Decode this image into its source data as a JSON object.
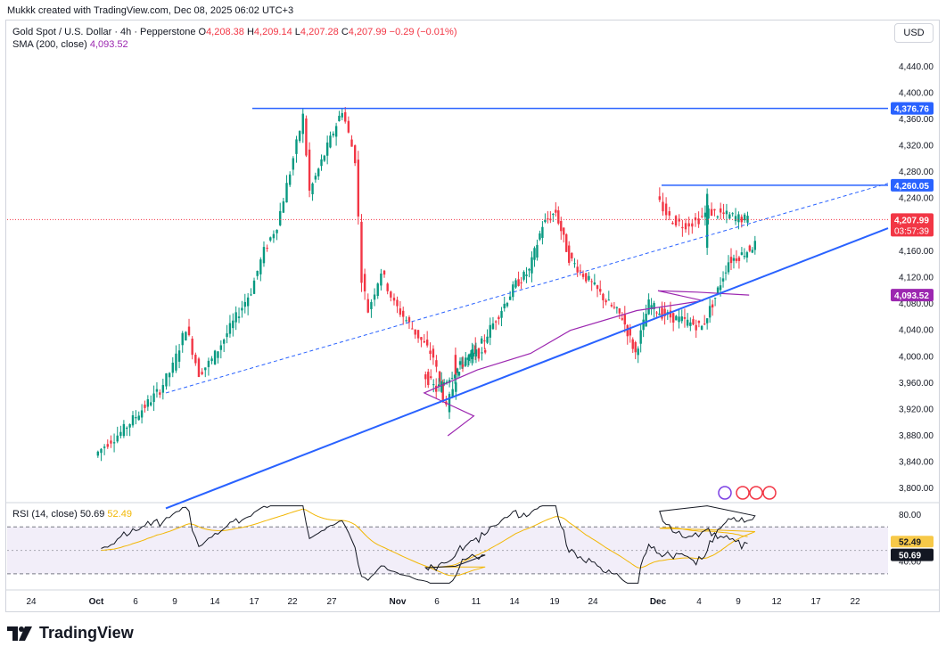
{
  "caption": "Mukkk created with TradingView.com, Dec 08, 2025 06:02 UTC+3",
  "legend": {
    "symbol": "Gold Spot / U.S. Dollar · 4h · Pepperstone",
    "o_label": "O",
    "o": "4,208.38",
    "h_label": "H",
    "h": "4,209.14",
    "l_label": "L",
    "l": "4,207.28",
    "c_label": "C",
    "c": "4,207.99",
    "change": "−0.29 (−0.01%)",
    "sma_label": "SMA (200, close)",
    "sma_value": "4,093.52"
  },
  "rsi_legend": {
    "label": "RSI (14, close)",
    "rsi": "50.69",
    "ma": "52.49"
  },
  "currency": "USD",
  "brand": "TradingView",
  "colors": {
    "up": "#089981",
    "down": "#f23645",
    "sma": "#9c27b0",
    "line": "#2962ff",
    "rsi": "#131722",
    "rsi_ma": "#f2b705",
    "rsi_band": "#7e57c2"
  },
  "chart_data": [
    {
      "type": "candlestick",
      "title": "Gold Spot / U.S. Dollar · 4h · Pepperstone",
      "ylim": [
        3780,
        4460
      ],
      "y_ticks": [
        "4,440.00",
        "4,400.00",
        "4,360.00",
        "4,320.00",
        "4,280.00",
        "4,240.00",
        "4,200.00",
        "4,160.00",
        "4,120.00",
        "4,080.00",
        "4,040.00",
        "4,000.00",
        "3,960.00",
        "3,920.00",
        "3,880.00",
        "3,840.00",
        "3,800.00"
      ],
      "x_ticks": [
        "24",
        "Oct",
        "6",
        "9",
        "14",
        "17",
        "22",
        "27",
        "Nov",
        "6",
        "11",
        "14",
        "19",
        "24",
        "Dec",
        "4",
        "9",
        "12",
        "17",
        "22"
      ],
      "close_path": [
        [
          "Oct 1",
          3850
        ],
        [
          "Oct 2",
          3870
        ],
        [
          "Oct 3",
          3885
        ],
        [
          "Oct 6",
          3950
        ],
        [
          "Oct 7",
          3985
        ],
        [
          "Oct 8",
          4045
        ],
        [
          "Oct 9",
          3975
        ],
        [
          "Oct 10",
          3995
        ],
        [
          "Oct 13",
          4100
        ],
        [
          "Oct 14",
          4160
        ],
        [
          "Oct 15",
          4200
        ],
        [
          "Oct 16",
          4280
        ],
        [
          "Oct 17",
          4365
        ],
        [
          "Oct 17b",
          4250
        ],
        [
          "Oct 20",
          4375
        ],
        [
          "Oct 21",
          4300
        ],
        [
          "Oct 21b",
          4120
        ],
        [
          "Oct 22",
          4070
        ],
        [
          "Oct 23",
          4130
        ],
        [
          "Oct 24",
          4080
        ],
        [
          "Oct 27",
          4000
        ],
        [
          "Oct 28",
          3920
        ],
        [
          "Oct 29",
          3985
        ],
        [
          "Oct 30",
          4010
        ],
        [
          "Oct 31",
          4000
        ],
        [
          "Nov 3",
          3975
        ],
        [
          "Nov 4",
          3950
        ],
        [
          "Nov 5",
          3970
        ],
        [
          "Nov 6",
          3990
        ],
        [
          "Nov 7",
          4005
        ],
        [
          "Nov 10",
          4110
        ],
        [
          "Nov 11",
          4130
        ],
        [
          "Nov 12",
          4200
        ],
        [
          "Nov 13",
          4220
        ],
        [
          "Nov 14",
          4150
        ],
        [
          "Nov 17",
          4080
        ],
        [
          "Nov 18",
          4060
        ],
        [
          "Nov 19",
          4005
        ],
        [
          "Nov 20",
          4080
        ],
        [
          "Nov 21",
          4065
        ],
        [
          "Nov 24",
          4045
        ],
        [
          "Nov 25",
          4090
        ],
        [
          "Nov 26",
          4145
        ],
        [
          "Nov 27",
          4155
        ],
        [
          "Nov 28",
          4170
        ],
        [
          "Dec 1",
          4240
        ],
        [
          "Dec 2",
          4210
        ],
        [
          "Dec 3",
          4200
        ],
        [
          "Dec 4",
          4205
        ],
        [
          "Dec 5",
          4220
        ],
        [
          "Dec 8",
          4207.99
        ]
      ],
      "sma_200_path": [
        [
          "Oct 28",
          3880
        ],
        [
          "Oct 30",
          3910
        ],
        [
          "Nov 3",
          3945
        ],
        [
          "Nov 7",
          3980
        ],
        [
          "Nov 11",
          4005
        ],
        [
          "Nov 14",
          4040
        ],
        [
          "Nov 19",
          4070
        ],
        [
          "Nov 24",
          4085
        ],
        [
          "Dec 1",
          4100
        ],
        [
          "Dec 4",
          4098
        ],
        [
          "Dec 8",
          4093.52
        ]
      ],
      "price_labels": {
        "resistance": "4,376.76",
        "upper_range": "4,260.05",
        "last": "4,207.99",
        "countdown": "03:57:39",
        "sma": "4,093.52"
      },
      "resistance_level": 4376.76,
      "upper_level": 4260.05,
      "last_price": 4207.99,
      "sma_value": 4093.52
    },
    {
      "type": "line",
      "title": "RSI (14, close)",
      "ylim": [
        20,
        90
      ],
      "y_ticks": [
        "80.00",
        "40.00"
      ],
      "bands": [
        70,
        30
      ],
      "rsi_value": 50.69,
      "rsi_ma_value": 52.49,
      "price_labels": {
        "rsi": "50.69",
        "rsi_ma": "52.49"
      }
    }
  ]
}
